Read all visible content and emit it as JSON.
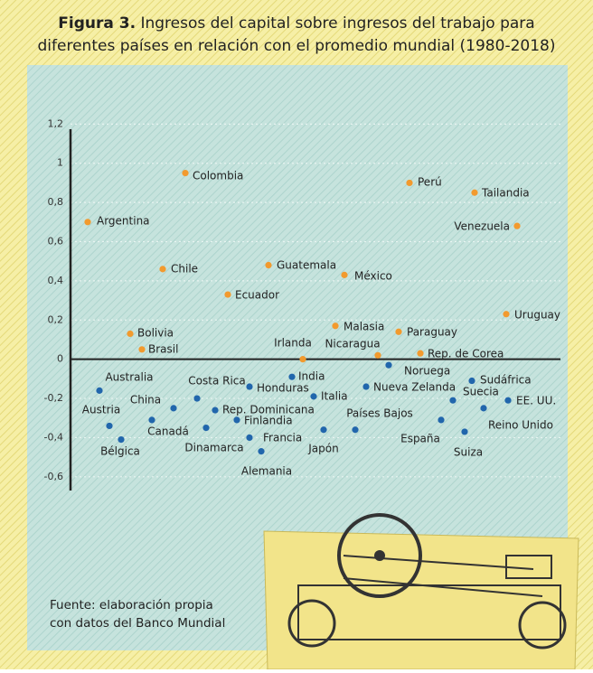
{
  "chart_data": {
    "type": "scatter",
    "title_label": "Figura 3.",
    "title": [
      "Ingresos del capital sobre ingresos del trabajo para",
      "diferentes países en relación con el promedio mundial (1980-2018)"
    ],
    "note": [
      "Fuente: elaboración propia",
      "con datos del Banco Mundial"
    ],
    "categories": [
      "Argentina",
      "Colombia",
      "Perú",
      "Tailandia",
      "Venezuela",
      "Chile",
      "Guatemala",
      "México",
      "Ecuador",
      "Uruguay",
      "Bolivia",
      "Malasia",
      "Paraguay",
      "Brasil",
      "Nicaragua",
      "Rep. de Corea",
      "Irlanda",
      "Noruega",
      "Australia",
      "India",
      "Costa Rica",
      "Honduras",
      "Italia",
      "Nueva Zelanda",
      "Sudáfrica",
      "Suecia",
      "EE. UU.",
      "Austria",
      "China",
      "Canadá",
      "Rep. Dominicana",
      "Finlandia",
      "Dinamarca",
      "Bélgica",
      "Francia",
      "Alemania",
      "Japón",
      "Países Bajos",
      "España",
      "Reino Unido",
      "Suiza"
    ],
    "values": [
      0.7,
      0.95,
      0.9,
      0.85,
      0.68,
      0.46,
      0.48,
      0.43,
      0.33,
      0.23,
      0.13,
      0.17,
      0.14,
      0.05,
      0.02,
      0.03,
      0,
      -0.03,
      -0.16,
      -0.09,
      -0.2,
      -0.14,
      -0.19,
      -0.14,
      -0.11,
      -0.21,
      -0.21,
      -0.34,
      -0.31,
      -0.25,
      -0.26,
      -0.31,
      -0.35,
      -0.41,
      -0.4,
      -0.47,
      -0.36,
      -0.36,
      -0.31,
      -0.25,
      -0.37
    ],
    "color_positive": "#f29a2e",
    "color_negative": "#2166ac",
    "ylim": [
      -0.67,
      1.22
    ],
    "yticks": [
      {
        "value": 1.2,
        "label": "1,2"
      },
      1,
      {
        "value": 0.8,
        "label": "0,8"
      },
      {
        "value": 0.6,
        "label": "0,6"
      },
      {
        "value": 0.4,
        "label": "0,4"
      },
      {
        "value": 0.2,
        "label": "0,2"
      },
      0,
      {
        "value": -0.2,
        "label": "-0,2"
      },
      {
        "value": -0.4,
        "label": "-0,4"
      },
      {
        "value": -0.6,
        "label": "-0,6"
      }
    ],
    "grid": true
  }
}
